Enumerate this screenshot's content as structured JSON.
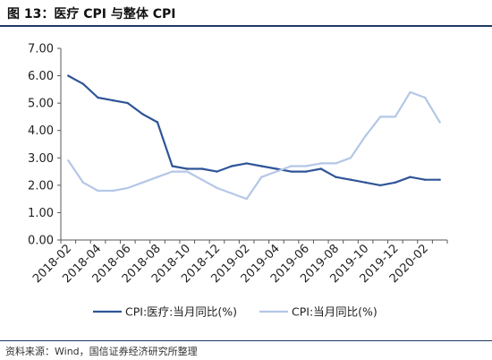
{
  "header": {
    "title": "图 13：医疗 CPI 与整体 CPI"
  },
  "footer": {
    "source": "资料来源：Wind，国信证券经济研究所整理"
  },
  "colors": {
    "series1": "#2f5597",
    "series2": "#b4c7e7",
    "axis": "#595959",
    "rule": "#1f3864"
  },
  "chart_data": {
    "type": "line",
    "title": "医疗 CPI 与整体 CPI",
    "xlabel": "",
    "ylabel": "",
    "ylim": [
      0,
      7
    ],
    "yticks": [
      "0.00",
      "1.00",
      "2.00",
      "3.00",
      "4.00",
      "5.00",
      "6.00",
      "7.00"
    ],
    "grid": false,
    "legend_position": "bottom",
    "x": [
      "2018-02",
      "2018-03",
      "2018-04",
      "2018-05",
      "2018-06",
      "2018-07",
      "2018-08",
      "2018-09",
      "2018-10",
      "2018-11",
      "2018-12",
      "2019-01",
      "2019-02",
      "2019-03",
      "2019-04",
      "2019-05",
      "2019-06",
      "2019-07",
      "2019-08",
      "2019-09",
      "2019-10",
      "2019-11",
      "2019-12",
      "2020-01",
      "2020-02",
      "2020-03"
    ],
    "xtick_labels": [
      "2018-02",
      "2018-04",
      "2018-06",
      "2018-08",
      "2018-10",
      "2018-12",
      "2019-02",
      "2019-04",
      "2019-06",
      "2019-08",
      "2019-10",
      "2019-12",
      "2020-02"
    ],
    "series": [
      {
        "name": "CPI:医疗:当月同比(%)",
        "values": [
          6.0,
          5.7,
          5.2,
          5.1,
          5.0,
          4.6,
          4.3,
          2.7,
          2.6,
          2.6,
          2.5,
          2.7,
          2.8,
          2.7,
          2.6,
          2.5,
          2.5,
          2.6,
          2.3,
          2.2,
          2.1,
          2.0,
          2.1,
          2.3,
          2.2,
          2.2
        ]
      },
      {
        "name": "CPI:当月同比(%)",
        "values": [
          2.9,
          2.1,
          1.8,
          1.8,
          1.9,
          2.1,
          2.3,
          2.5,
          2.5,
          2.2,
          1.9,
          1.7,
          1.5,
          2.3,
          2.5,
          2.7,
          2.7,
          2.8,
          2.8,
          3.0,
          3.8,
          4.5,
          4.5,
          5.4,
          5.2,
          4.3
        ]
      }
    ]
  }
}
